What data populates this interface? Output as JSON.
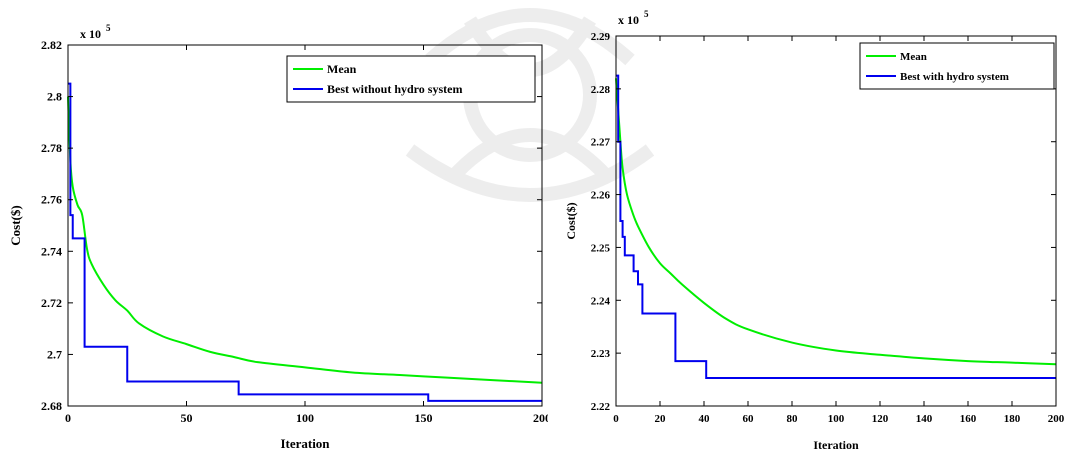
{
  "chart_data": [
    {
      "type": "line",
      "title": "",
      "xlabel": "Iteration",
      "ylabel": "Cost($)",
      "y_multiplier_label": "x 10",
      "y_multiplier_exponent": "5",
      "xlim": [
        0,
        200
      ],
      "ylim": [
        2.68,
        2.82
      ],
      "x_ticks": [
        0,
        50,
        100,
        150,
        200
      ],
      "y_ticks": [
        2.68,
        2.7,
        2.72,
        2.74,
        2.76,
        2.78,
        2.8,
        2.82
      ],
      "x_tick_labels": [
        "0",
        "50",
        "100",
        "150",
        "200"
      ],
      "y_tick_labels": [
        "2.68",
        "2.7",
        "2.72",
        "2.74",
        "2.76",
        "2.78",
        "2.8",
        "2.82"
      ],
      "grid": false,
      "legend_position": "top-right",
      "series": [
        {
          "name": "Mean",
          "color": "#00ee00",
          "style": "curve",
          "x": [
            0,
            1,
            2,
            4,
            6,
            8,
            10,
            15,
            20,
            25,
            30,
            40,
            50,
            60,
            70,
            80,
            100,
            120,
            140,
            160,
            180,
            200
          ],
          "values": [
            2.8,
            2.775,
            2.765,
            2.758,
            2.754,
            2.741,
            2.735,
            2.727,
            2.721,
            2.717,
            2.712,
            2.707,
            2.704,
            2.701,
            2.699,
            2.697,
            2.695,
            2.693,
            2.692,
            2.691,
            2.69,
            2.689
          ]
        },
        {
          "name": "Best without hydro system",
          "color": "#0000ee",
          "style": "step",
          "x": [
            0,
            1,
            2,
            7,
            25,
            72,
            152,
            200
          ],
          "values": [
            2.805,
            2.754,
            2.745,
            2.703,
            2.6895,
            2.6845,
            2.682,
            2.682
          ]
        }
      ]
    },
    {
      "type": "line",
      "title": "",
      "xlabel": "Iteration",
      "ylabel": "Cost($)",
      "y_multiplier_label": "x 10",
      "y_multiplier_exponent": "5",
      "xlim": [
        0,
        200
      ],
      "ylim": [
        2.22,
        2.29
      ],
      "x_ticks": [
        0,
        20,
        40,
        60,
        80,
        100,
        120,
        140,
        160,
        180,
        200
      ],
      "y_ticks": [
        2.22,
        2.23,
        2.24,
        2.25,
        2.26,
        2.27,
        2.28,
        2.29
      ],
      "x_tick_labels": [
        "0",
        "20",
        "40",
        "60",
        "80",
        "100",
        "120",
        "140",
        "160",
        "180",
        "200"
      ],
      "y_tick_labels": [
        "2.22",
        "2.23",
        "2.24",
        "2.25",
        "2.26",
        "2.27",
        "2.28",
        "2.29"
      ],
      "grid": false,
      "legend_position": "top-right",
      "series": [
        {
          "name": "Mean",
          "color": "#00ee00",
          "style": "curve",
          "x": [
            0,
            1,
            2,
            3,
            5,
            8,
            10,
            15,
            20,
            25,
            30,
            40,
            50,
            60,
            80,
            100,
            120,
            140,
            160,
            180,
            200
          ],
          "values": [
            2.282,
            2.276,
            2.27,
            2.265,
            2.26,
            2.256,
            2.254,
            2.25,
            2.247,
            2.245,
            2.243,
            2.2395,
            2.2365,
            2.2345,
            2.232,
            2.2305,
            2.2297,
            2.229,
            2.2285,
            2.2282,
            2.2279
          ]
        },
        {
          "name": "Best with hydro system",
          "color": "#0000ee",
          "style": "step",
          "x": [
            0,
            1,
            2,
            3,
            4,
            8,
            10,
            12,
            27,
            41,
            200
          ],
          "values": [
            2.2825,
            2.27,
            2.255,
            2.252,
            2.2485,
            2.2455,
            2.243,
            2.2375,
            2.2285,
            2.2253,
            2.2253
          ]
        }
      ]
    }
  ]
}
